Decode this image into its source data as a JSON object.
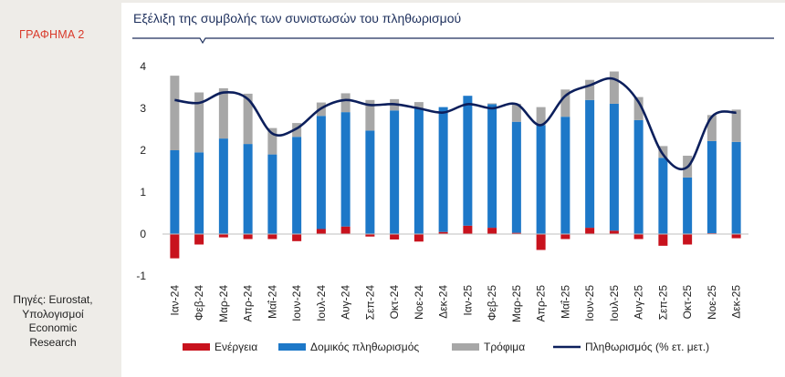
{
  "figure_label": "ΓΡΑΦΗΜΑ 2",
  "source_lines": [
    "Πηγές: Eurostat,",
    "Υπολογισμοί",
    "Economic",
    "Research"
  ],
  "colors": {
    "energy": "#c8121d",
    "core": "#1d78c8",
    "food": "#a7a7a7",
    "inflation": "#0c1f5c",
    "title": "#1d2f5c",
    "label": "#d93a2b"
  },
  "chart_data": {
    "type": "bar",
    "title": "Εξέλιξη της συμβολής των συνιστωσών του πληθωρισμού",
    "xlabel": "",
    "ylabel": "",
    "ylim": [
      -1,
      4
    ],
    "yticks": [
      "4",
      "3",
      "2",
      "1",
      "0",
      "-1"
    ],
    "categories": [
      "Ιαν-24",
      "Φεβ-24",
      "Μαρ-24",
      "Απρ-24",
      "Μαΐ-24",
      "Ιουν-24",
      "Ιουλ-24",
      "Αυγ-24",
      "Σεπ-24",
      "Οκτ-24",
      "Νοε-24",
      "Δεκ-24",
      "Ιαν-25",
      "Φεβ-25",
      "Μαρ-25",
      "Απρ-25",
      "Μαΐ-25",
      "Ιουν-25",
      "Ιουλ-25",
      "Αυγ-25",
      "Σεπ-25",
      "Οκτ-25",
      "Νοε-25",
      "Δεκ-25"
    ],
    "series": [
      {
        "name": "Ενέργεια",
        "kind": "bar",
        "values": [
          -0.58,
          -0.25,
          -0.08,
          -0.12,
          -0.12,
          -0.17,
          0.12,
          0.18,
          -0.06,
          -0.13,
          -0.18,
          0.05,
          0.2,
          0.15,
          0.03,
          -0.38,
          -0.12,
          0.15,
          0.08,
          -0.12,
          -0.28,
          -0.25,
          0.02,
          -0.1
        ]
      },
      {
        "name": "Δομικός πληθωρισμός",
        "kind": "bar",
        "values": [
          2.0,
          1.95,
          2.28,
          2.15,
          1.9,
          2.32,
          2.7,
          2.73,
          2.47,
          2.95,
          3.0,
          2.98,
          3.1,
          2.95,
          2.65,
          2.6,
          2.8,
          3.05,
          3.03,
          2.72,
          1.82,
          1.35,
          2.2,
          2.2
        ]
      },
      {
        "name": "Τρόφιμα",
        "kind": "bar",
        "values": [
          1.78,
          1.43,
          1.2,
          1.2,
          0.63,
          0.33,
          0.32,
          0.45,
          0.73,
          0.27,
          0.15,
          0.0,
          0.0,
          0.02,
          0.43,
          0.43,
          0.65,
          0.48,
          0.77,
          0.55,
          0.28,
          0.52,
          0.62,
          0.77
        ]
      },
      {
        "name": "Πληθωρισμός (% ετ. μετ.)",
        "kind": "line",
        "values": [
          3.2,
          3.13,
          3.38,
          3.22,
          2.4,
          2.52,
          3.0,
          3.2,
          3.08,
          3.1,
          3.0,
          2.9,
          3.1,
          3.0,
          3.1,
          2.6,
          3.3,
          3.55,
          3.7,
          3.15,
          1.9,
          1.6,
          2.8,
          2.9
        ]
      }
    ],
    "legend_position": "bottom"
  }
}
